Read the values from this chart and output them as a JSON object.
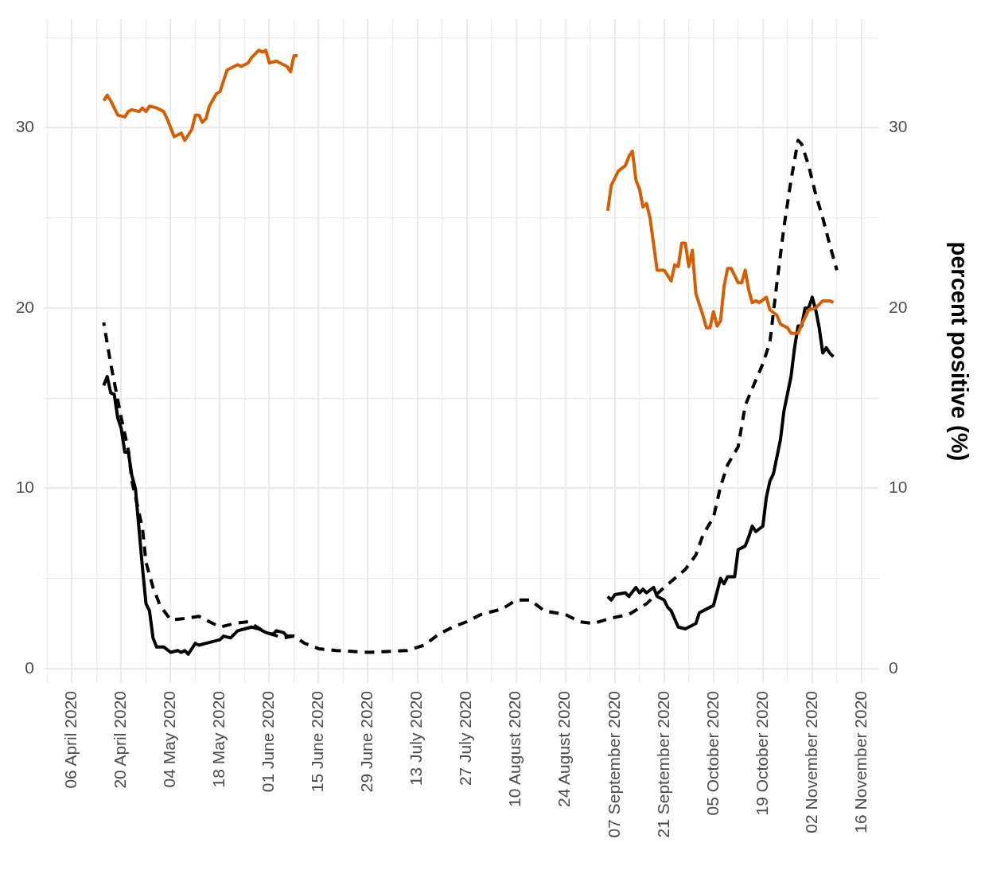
{
  "chart_data": {
    "type": "line",
    "y2label": "percent positive (%)",
    "grid": true,
    "marker": "none",
    "xlim": [
      "2020-03-29",
      "2020-11-21"
    ],
    "xticks": [
      {
        "value": "2020-03-30",
        "label": null
      },
      {
        "value": "2020-04-06",
        "label": "06 April 2020"
      },
      {
        "value": "2020-04-13",
        "label": null
      },
      {
        "value": "2020-04-20",
        "label": "20 April 2020"
      },
      {
        "value": "2020-04-27",
        "label": null
      },
      {
        "value": "2020-05-04",
        "label": "04 May 2020"
      },
      {
        "value": "2020-05-11",
        "label": null
      },
      {
        "value": "2020-05-18",
        "label": "18 May 2020"
      },
      {
        "value": "2020-05-25",
        "label": null
      },
      {
        "value": "2020-06-01",
        "label": "01 June 2020"
      },
      {
        "value": "2020-06-08",
        "label": null
      },
      {
        "value": "2020-06-15",
        "label": "15 June 2020"
      },
      {
        "value": "2020-06-22",
        "label": null
      },
      {
        "value": "2020-06-29",
        "label": "29 June 2020"
      },
      {
        "value": "2020-07-06",
        "label": null
      },
      {
        "value": "2020-07-13",
        "label": "13 July 2020"
      },
      {
        "value": "2020-07-20",
        "label": null
      },
      {
        "value": "2020-07-27",
        "label": "27 July 2020"
      },
      {
        "value": "2020-08-03",
        "label": null
      },
      {
        "value": "2020-08-10",
        "label": "10 August 2020"
      },
      {
        "value": "2020-08-17",
        "label": null
      },
      {
        "value": "2020-08-24",
        "label": "24 August 2020"
      },
      {
        "value": "2020-08-31",
        "label": null
      },
      {
        "value": "2020-09-07",
        "label": "07 September 2020"
      },
      {
        "value": "2020-09-14",
        "label": null
      },
      {
        "value": "2020-09-21",
        "label": "21 September 2020"
      },
      {
        "value": "2020-09-28",
        "label": null
      },
      {
        "value": "2020-10-05",
        "label": "05 October 2020"
      },
      {
        "value": "2020-10-12",
        "label": null
      },
      {
        "value": "2020-10-19",
        "label": "19 October 2020"
      },
      {
        "value": "2020-10-26",
        "label": null
      },
      {
        "value": "2020-11-02",
        "label": "02 November 2020"
      },
      {
        "value": "2020-11-09",
        "label": null
      },
      {
        "value": "2020-11-16",
        "label": "16 November 2020"
      }
    ],
    "ylim": [
      -0.8,
      36
    ],
    "yticks": [
      0,
      {
        "value": 5,
        "label": null
      },
      10,
      {
        "value": 15,
        "label": null
      },
      20,
      {
        "value": 25,
        "label": null
      },
      30,
      {
        "value": 35,
        "label": null
      }
    ],
    "y2lim": [
      -0.8,
      36
    ],
    "y2ticks": [
      0,
      10,
      20,
      30
    ],
    "series": [
      {
        "color": "#d55e00",
        "line_style": "solid",
        "x": [
          "2020-04-15",
          "2020-04-16",
          "2020-04-17",
          "2020-04-19",
          "2020-04-21",
          "2020-04-22",
          "2020-04-23",
          "2020-04-25",
          "2020-04-26",
          "2020-04-27",
          "2020-04-28",
          "2020-04-30",
          "2020-05-02",
          "2020-05-03",
          "2020-05-05",
          "2020-05-07",
          "2020-05-08",
          "2020-05-10",
          "2020-05-11",
          "2020-05-12",
          "2020-05-13",
          "2020-05-14",
          "2020-05-15",
          "2020-05-17",
          "2020-05-18",
          "2020-05-20",
          "2020-05-22",
          "2020-05-23",
          "2020-05-24",
          "2020-05-26",
          "2020-05-27",
          "2020-05-29",
          "2020-05-30",
          "2020-05-31",
          "2020-06-01",
          "2020-06-03",
          "2020-06-06",
          "2020-06-07",
          "2020-06-08",
          "2020-06-09",
          "2020-07-20",
          "2020-09-05",
          "2020-09-06",
          "2020-09-08",
          "2020-09-10",
          "2020-09-11",
          "2020-09-12",
          "2020-09-13",
          "2020-09-14",
          "2020-09-15",
          "2020-09-16",
          "2020-09-17",
          "2020-09-19",
          "2020-09-21",
          "2020-09-23",
          "2020-09-24",
          "2020-09-25",
          "2020-09-26",
          "2020-09-27",
          "2020-09-28",
          "2020-09-29",
          "2020-09-30",
          "2020-10-02",
          "2020-10-03",
          "2020-10-04",
          "2020-10-05",
          "2020-10-06",
          "2020-10-07",
          "2020-10-08",
          "2020-10-09",
          "2020-10-10",
          "2020-10-12",
          "2020-10-13",
          "2020-10-14",
          "2020-10-15",
          "2020-10-16",
          "2020-10-17",
          "2020-10-18",
          "2020-10-20",
          "2020-10-21",
          "2020-10-23",
          "2020-10-24",
          "2020-10-26",
          "2020-10-27",
          "2020-10-29",
          "2020-10-30",
          "2020-11-01",
          "2020-11-03",
          "2020-11-05",
          "2020-11-07",
          "2020-11-08"
        ],
        "values": [
          31.5,
          31.8,
          31.5,
          30.7,
          30.6,
          30.9,
          31.0,
          30.9,
          31.1,
          30.9,
          31.2,
          31.1,
          30.9,
          30.5,
          29.5,
          29.7,
          29.3,
          29.9,
          30.7,
          30.7,
          30.3,
          30.5,
          31.2,
          31.9,
          32.0,
          33.2,
          33.4,
          33.5,
          33.4,
          33.6,
          33.9,
          34.3,
          34.2,
          34.3,
          33.6,
          33.7,
          33.4,
          33.1,
          34.0,
          34.0,
          null,
          25.4,
          26.8,
          27.6,
          27.9,
          28.4,
          28.7,
          27.1,
          26.6,
          25.6,
          25.8,
          25.0,
          22.1,
          22.1,
          21.5,
          22.4,
          22.3,
          23.6,
          23.6,
          22.3,
          23.2,
          20.8,
          19.6,
          18.9,
          18.9,
          19.8,
          19.0,
          19.3,
          21.2,
          22.2,
          22.2,
          21.4,
          21.4,
          22.1,
          21.0,
          20.3,
          20.4,
          20.3,
          20.6,
          19.9,
          19.6,
          19.1,
          18.9,
          18.6,
          18.6,
          19.1,
          19.9,
          20.0,
          20.4,
          20.4,
          20.3
        ]
      },
      {
        "color": "#000000",
        "line_style": "solid",
        "x": [
          "2020-04-15",
          "2020-04-16",
          "2020-04-17",
          "2020-04-18",
          "2020-04-19",
          "2020-04-20",
          "2020-04-21",
          "2020-04-22",
          "2020-04-23",
          "2020-04-24",
          "2020-04-25",
          "2020-04-26",
          "2020-04-27",
          "2020-04-28",
          "2020-04-29",
          "2020-04-30",
          "2020-05-02",
          "2020-05-04",
          "2020-05-06",
          "2020-05-07",
          "2020-05-08",
          "2020-05-09",
          "2020-05-11",
          "2020-05-12",
          "2020-05-16",
          "2020-05-18",
          "2020-05-19",
          "2020-05-21",
          "2020-05-23",
          "2020-05-25",
          "2020-05-27",
          "2020-05-29",
          "2020-05-31",
          "2020-06-02",
          "2020-06-03",
          "2020-06-05",
          "2020-06-06",
          "2020-06-08",
          "2020-07-20",
          "2020-09-05",
          "2020-09-06",
          "2020-09-07",
          "2020-09-10",
          "2020-09-11",
          "2020-09-13",
          "2020-09-14",
          "2020-09-15",
          "2020-09-16",
          "2020-09-18",
          "2020-09-19",
          "2020-09-21",
          "2020-09-22",
          "2020-09-23",
          "2020-09-25",
          "2020-09-27",
          "2020-09-30",
          "2020-10-01",
          "2020-10-03",
          "2020-10-05",
          "2020-10-07",
          "2020-10-08",
          "2020-10-09",
          "2020-10-11",
          "2020-10-12",
          "2020-10-14",
          "2020-10-15",
          "2020-10-16",
          "2020-10-17",
          "2020-10-19",
          "2020-10-20",
          "2020-10-21",
          "2020-10-22",
          "2020-10-24",
          "2020-10-25",
          "2020-10-27",
          "2020-10-28",
          "2020-10-29",
          "2020-10-30",
          "2020-10-31",
          "2020-11-01",
          "2020-11-02",
          "2020-11-03",
          "2020-11-04",
          "2020-11-05",
          "2020-11-06",
          "2020-11-07",
          "2020-11-08"
        ],
        "values": [
          15.7,
          16.2,
          15.3,
          15.2,
          13.9,
          13.3,
          12.0,
          12.0,
          10.7,
          10.0,
          7.8,
          5.6,
          3.6,
          3.2,
          1.7,
          1.2,
          1.2,
          0.9,
          1.0,
          0.9,
          1.0,
          0.8,
          1.4,
          1.3,
          1.5,
          1.6,
          1.8,
          1.7,
          2.1,
          2.2,
          2.3,
          2.2,
          2.0,
          1.9,
          2.1,
          2.0,
          1.8,
          1.8,
          null,
          4.0,
          3.8,
          4.1,
          4.2,
          4.0,
          4.5,
          4.2,
          4.4,
          4.2,
          4.5,
          4.0,
          3.8,
          3.4,
          3.2,
          2.3,
          2.2,
          2.5,
          3.1,
          3.3,
          3.5,
          5.0,
          4.7,
          5.1,
          5.1,
          6.6,
          6.8,
          7.3,
          7.9,
          7.6,
          7.9,
          9.5,
          10.4,
          10.8,
          12.7,
          14.3,
          16.2,
          17.8,
          19.0,
          19.0,
          20.0,
          20.0,
          20.6,
          19.9,
          18.9,
          17.5,
          17.8,
          17.5,
          17.3
        ]
      },
      {
        "color": "#000000",
        "line_style": "dashed",
        "x": [
          "2020-04-15",
          "2020-04-17",
          "2020-04-18",
          "2020-04-20",
          "2020-04-22",
          "2020-04-23",
          "2020-04-26",
          "2020-04-27",
          "2020-04-29",
          "2020-05-01",
          "2020-05-04",
          "2020-05-09",
          "2020-05-12",
          "2020-05-15",
          "2020-05-18",
          "2020-05-22",
          "2020-05-26",
          "2020-05-31",
          "2020-06-05",
          "2020-06-08",
          "2020-06-11",
          "2020-06-15",
          "2020-06-20",
          "2020-06-29",
          "2020-07-10",
          "2020-07-15",
          "2020-07-19",
          "2020-07-23",
          "2020-07-27",
          "2020-07-31",
          "2020-08-06",
          "2020-08-10",
          "2020-08-14",
          "2020-08-18",
          "2020-08-24",
          "2020-08-28",
          "2020-09-01",
          "2020-09-06",
          "2020-09-11",
          "2020-09-16",
          "2020-09-21",
          "2020-09-27",
          "2020-09-30",
          "2020-10-02",
          "2020-10-05",
          "2020-10-07",
          "2020-10-09",
          "2020-10-12",
          "2020-10-14",
          "2020-10-17",
          "2020-10-19",
          "2020-10-21",
          "2020-10-23",
          "2020-10-25",
          "2020-10-27",
          "2020-10-29",
          "2020-10-30",
          "2020-11-01",
          "2020-11-03",
          "2020-11-05",
          "2020-11-07",
          "2020-11-09"
        ],
        "values": [
          19.2,
          16.9,
          15.9,
          13.9,
          12.1,
          10.4,
          7.8,
          5.9,
          4.5,
          3.5,
          2.7,
          2.8,
          2.9,
          2.6,
          2.3,
          2.5,
          2.6,
          2.0,
          1.7,
          1.8,
          1.4,
          1.1,
          1.0,
          0.9,
          1.0,
          1.3,
          1.9,
          2.3,
          2.6,
          3.0,
          3.3,
          3.8,
          3.8,
          3.2,
          3.0,
          2.6,
          2.5,
          2.8,
          3.0,
          3.6,
          4.5,
          5.5,
          6.3,
          7.4,
          8.4,
          10.1,
          11.3,
          12.3,
          14.6,
          16.0,
          16.9,
          18.1,
          21.4,
          24.5,
          27.1,
          29.3,
          29.1,
          27.9,
          26.3,
          25.0,
          23.5,
          22.1
        ]
      }
    ]
  }
}
